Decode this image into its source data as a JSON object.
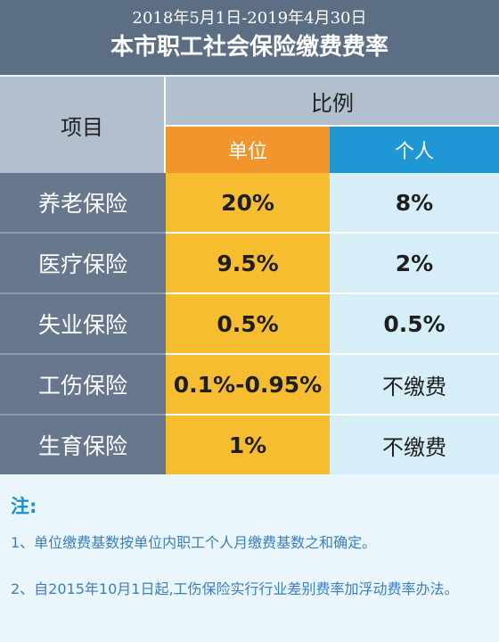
{
  "header": {
    "date_range": "2018年5月1日-2019年4月30日",
    "title": "本市职工社会保险缴费费率"
  },
  "table": {
    "item_header": "项目",
    "ratio_header": "比例",
    "unit_header": "单位",
    "person_header": "个人",
    "rows": [
      {
        "item": "养老保险",
        "unit": "20%",
        "person": "8%"
      },
      {
        "item": "医疗保险",
        "unit": "9.5%",
        "person": "2%"
      },
      {
        "item": "失业保险",
        "unit": "0.5%",
        "person": "0.5%"
      },
      {
        "item": "工伤保险",
        "unit": "0.1%-0.95%",
        "person": "不缴费"
      },
      {
        "item": "生育保险",
        "unit": "1%",
        "person": "不缴费"
      }
    ]
  },
  "notes": {
    "heading": "注:",
    "items": [
      "1、单位缴费基数按单位内职工个人月缴费基数之和确定。",
      "2、自2015年10月1日起,工伤保险实行行业差别费率加浮动费率办法。"
    ]
  },
  "colors": {
    "header_bg": "#5c6e83",
    "unit_header": "#f2952d",
    "person_header": "#1f97d4",
    "unit_cells": "#f5bd2f",
    "person_cells": "#d6eef8",
    "note_text": "#3a7fbf"
  }
}
